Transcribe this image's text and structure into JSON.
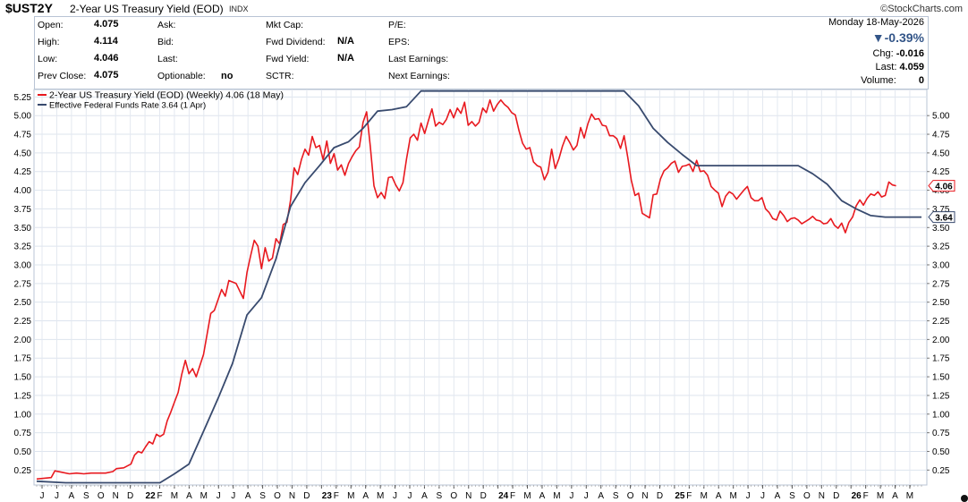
{
  "header": {
    "symbol": "$UST2Y",
    "description": "2-Year US Treasury Yield (EOD)",
    "exchange": "INDX",
    "brand": "©StockCharts.com",
    "date": "Monday  18-May-2026"
  },
  "quote": {
    "col1": [
      {
        "label": "Open:",
        "value": "4.075"
      },
      {
        "label": "High:",
        "value": "4.114"
      },
      {
        "label": "Low:",
        "value": "4.046"
      },
      {
        "label": "Prev Close:",
        "value": "4.075"
      }
    ],
    "col2": [
      {
        "label": "Ask:",
        "value": ""
      },
      {
        "label": "Bid:",
        "value": ""
      },
      {
        "label": "Last:",
        "value": ""
      },
      {
        "label": "Optionable:",
        "value": "no"
      }
    ],
    "col3": [
      {
        "label": "Mkt Cap:",
        "value": ""
      },
      {
        "label": "Fwd Dividend:",
        "value": "N/A"
      },
      {
        "label": "Fwd Yield:",
        "value": "N/A"
      },
      {
        "label": "SCTR:",
        "value": ""
      }
    ],
    "col4": [
      {
        "label": "P/E:"
      },
      {
        "label": "EPS:"
      },
      {
        "label": "Last Earnings:"
      },
      {
        "label": "Next Earnings:"
      }
    ],
    "change_pct": "▼-0.39%",
    "chg_label": "Chg:",
    "chg_value": "-0.016",
    "last_label": "Last:",
    "last_value": "4.059",
    "volume_label": "Volume:",
    "volume_value": "0"
  },
  "chart_data": {
    "type": "line",
    "ylim": [
      0.05,
      5.35
    ],
    "y_ticks_left": [
      "5.25",
      "5.00",
      "4.75",
      "4.50",
      "4.25",
      "4.00",
      "3.75",
      "3.50",
      "3.25",
      "3.00",
      "2.75",
      "2.50",
      "2.25",
      "2.00",
      "1.75",
      "1.50",
      "1.25",
      "1.00",
      "0.75",
      "0.50",
      "0.25"
    ],
    "y_ticks_right": [
      "5.00",
      "4.75",
      "4.50",
      "4.25",
      "4.00",
      "3.75",
      "3.50",
      "3.25",
      "3.00",
      "2.75",
      "2.50",
      "2.25",
      "2.00",
      "1.75",
      "1.50",
      "1.25",
      "1.00",
      "0.75",
      "0.50",
      "0.25"
    ],
    "x_ticks": [
      "J",
      "J",
      "A",
      "S",
      "O",
      "N",
      "D",
      "22",
      "F",
      "M",
      "A",
      "M",
      "J",
      "J",
      "A",
      "S",
      "O",
      "N",
      "D",
      "23",
      "F",
      "M",
      "A",
      "M",
      "J",
      "J",
      "A",
      "S",
      "O",
      "N",
      "D",
      "24",
      "F",
      "M",
      "A",
      "M",
      "J",
      "J",
      "A",
      "S",
      "O",
      "N",
      "D",
      "25",
      "F",
      "M",
      "A",
      "M",
      "J",
      "J",
      "A",
      "S",
      "O",
      "N",
      "D",
      "26",
      "F",
      "M",
      "A",
      "M"
    ],
    "legend": [
      {
        "name": "2-Year US Treasury Yield (EOD) (Weekly) 4.06 (18 May)",
        "color": "#e8191f"
      },
      {
        "name": "Effective Federal Funds Rate 3.64 (1 Apr)",
        "color": "#384a6e"
      }
    ],
    "series": [
      {
        "name": "2-Year US Treasury Yield (EOD) (Weekly) 4.06 (18 May)",
        "color": "#e8191f",
        "last_label": "4.06",
        "anchors": [
          [
            0,
            0.13
          ],
          [
            4,
            0.15
          ],
          [
            5,
            0.24
          ],
          [
            7,
            0.22
          ],
          [
            9,
            0.2
          ],
          [
            11,
            0.21
          ],
          [
            13,
            0.2
          ],
          [
            15,
            0.21
          ],
          [
            17,
            0.21
          ],
          [
            19,
            0.21
          ],
          [
            21,
            0.23
          ],
          [
            22,
            0.27
          ],
          [
            24,
            0.28
          ],
          [
            26,
            0.33
          ],
          [
            27,
            0.45
          ],
          [
            28,
            0.5
          ],
          [
            29,
            0.48
          ],
          [
            30,
            0.56
          ],
          [
            31,
            0.63
          ],
          [
            32,
            0.6
          ],
          [
            33,
            0.73
          ],
          [
            34,
            0.7
          ],
          [
            35,
            0.73
          ],
          [
            36,
            0.91
          ],
          [
            37,
            1.03
          ],
          [
            38,
            1.16
          ],
          [
            39,
            1.29
          ],
          [
            40,
            1.53
          ],
          [
            41,
            1.72
          ],
          [
            42,
            1.54
          ],
          [
            43,
            1.61
          ],
          [
            44,
            1.5
          ],
          [
            46,
            1.8
          ],
          [
            48,
            2.35
          ],
          [
            49,
            2.39
          ],
          [
            51,
            2.67
          ],
          [
            52,
            2.58
          ],
          [
            53,
            2.79
          ],
          [
            55,
            2.75
          ],
          [
            57,
            2.55
          ],
          [
            58,
            2.9
          ],
          [
            59,
            3.12
          ],
          [
            60,
            3.33
          ],
          [
            61,
            3.25
          ],
          [
            62,
            2.95
          ],
          [
            63,
            3.23
          ],
          [
            64,
            3.05
          ],
          [
            65,
            3.09
          ],
          [
            66,
            3.35
          ],
          [
            67,
            3.28
          ],
          [
            68,
            3.54
          ],
          [
            69,
            3.57
          ],
          [
            70,
            3.86
          ],
          [
            71,
            4.3
          ],
          [
            72,
            4.21
          ],
          [
            73,
            4.41
          ],
          [
            74,
            4.55
          ],
          [
            75,
            4.47
          ],
          [
            76,
            4.72
          ],
          [
            77,
            4.57
          ],
          [
            78,
            4.6
          ],
          [
            79,
            4.41
          ],
          [
            80,
            4.66
          ],
          [
            81,
            4.36
          ],
          [
            82,
            4.49
          ],
          [
            83,
            4.27
          ],
          [
            84,
            4.34
          ],
          [
            85,
            4.2
          ],
          [
            86,
            4.36
          ],
          [
            87,
            4.45
          ],
          [
            88,
            4.53
          ],
          [
            89,
            4.58
          ],
          [
            90,
            4.91
          ],
          [
            91,
            5.05
          ],
          [
            92,
            4.59
          ],
          [
            93,
            4.06
          ],
          [
            94,
            3.9
          ],
          [
            95,
            3.97
          ],
          [
            96,
            3.89
          ],
          [
            97,
            4.17
          ],
          [
            98,
            4.18
          ],
          [
            99,
            4.07
          ],
          [
            100,
            3.99
          ],
          [
            101,
            4.1
          ],
          [
            102,
            4.42
          ],
          [
            103,
            4.7
          ],
          [
            104,
            4.75
          ],
          [
            105,
            4.67
          ],
          [
            106,
            4.9
          ],
          [
            107,
            4.76
          ],
          [
            108,
            4.93
          ],
          [
            109,
            5.09
          ],
          [
            110,
            4.86
          ],
          [
            111,
            4.91
          ],
          [
            112,
            4.88
          ],
          [
            113,
            4.95
          ],
          [
            114,
            5.08
          ],
          [
            115,
            4.97
          ],
          [
            116,
            5.1
          ],
          [
            117,
            5.03
          ],
          [
            118,
            5.18
          ],
          [
            119,
            4.87
          ],
          [
            120,
            4.92
          ],
          [
            121,
            4.86
          ],
          [
            122,
            4.91
          ],
          [
            123,
            5.1
          ],
          [
            124,
            5.04
          ],
          [
            125,
            5.21
          ],
          [
            126,
            5.06
          ],
          [
            127,
            5.15
          ],
          [
            128,
            5.21
          ],
          [
            129,
            5.15
          ],
          [
            130,
            5.11
          ],
          [
            131,
            5.04
          ],
          [
            132,
            5.01
          ],
          [
            133,
            4.8
          ],
          [
            134,
            4.63
          ],
          [
            135,
            4.55
          ],
          [
            136,
            4.57
          ],
          [
            137,
            4.38
          ],
          [
            138,
            4.33
          ],
          [
            139,
            4.31
          ],
          [
            140,
            4.14
          ],
          [
            141,
            4.24
          ],
          [
            142,
            4.55
          ],
          [
            143,
            4.29
          ],
          [
            144,
            4.42
          ],
          [
            145,
            4.59
          ],
          [
            146,
            4.72
          ],
          [
            147,
            4.64
          ],
          [
            148,
            4.54
          ],
          [
            149,
            4.6
          ],
          [
            150,
            4.84
          ],
          [
            151,
            4.7
          ],
          [
            152,
            4.89
          ],
          [
            153,
            5.02
          ],
          [
            154,
            4.95
          ],
          [
            155,
            4.96
          ],
          [
            156,
            4.87
          ],
          [
            157,
            4.86
          ],
          [
            158,
            4.73
          ],
          [
            159,
            4.73
          ],
          [
            160,
            4.69
          ],
          [
            161,
            4.56
          ],
          [
            162,
            4.73
          ],
          [
            163,
            4.44
          ],
          [
            164,
            4.13
          ],
          [
            165,
            3.93
          ],
          [
            166,
            3.96
          ],
          [
            167,
            3.69
          ],
          [
            168,
            3.66
          ],
          [
            169,
            3.63
          ],
          [
            170,
            3.94
          ],
          [
            171,
            3.95
          ],
          [
            172,
            4.15
          ],
          [
            173,
            4.26
          ],
          [
            174,
            4.3
          ],
          [
            175,
            4.36
          ],
          [
            176,
            4.39
          ],
          [
            177,
            4.24
          ],
          [
            178,
            4.32
          ],
          [
            179,
            4.33
          ],
          [
            180,
            4.35
          ],
          [
            181,
            4.25
          ],
          [
            182,
            4.4
          ],
          [
            183,
            4.25
          ],
          [
            184,
            4.26
          ],
          [
            185,
            4.2
          ],
          [
            186,
            4.05
          ],
          [
            187,
            4.0
          ],
          [
            188,
            3.96
          ],
          [
            189,
            3.78
          ],
          [
            190,
            3.92
          ],
          [
            191,
            3.98
          ],
          [
            192,
            3.95
          ],
          [
            193,
            3.88
          ],
          [
            194,
            3.94
          ],
          [
            195,
            4.0
          ],
          [
            196,
            4.05
          ],
          [
            197,
            3.9
          ],
          [
            198,
            3.86
          ],
          [
            199,
            3.86
          ],
          [
            200,
            3.9
          ],
          [
            201,
            3.75
          ],
          [
            202,
            3.7
          ],
          [
            203,
            3.62
          ],
          [
            204,
            3.6
          ],
          [
            205,
            3.72
          ],
          [
            206,
            3.66
          ],
          [
            207,
            3.58
          ],
          [
            208,
            3.62
          ],
          [
            209,
            3.63
          ],
          [
            210,
            3.6
          ],
          [
            211,
            3.55
          ],
          [
            212,
            3.58
          ],
          [
            213,
            3.61
          ],
          [
            214,
            3.65
          ],
          [
            215,
            3.6
          ],
          [
            216,
            3.59
          ],
          [
            217,
            3.55
          ],
          [
            218,
            3.56
          ],
          [
            219,
            3.62
          ],
          [
            220,
            3.53
          ],
          [
            221,
            3.49
          ],
          [
            222,
            3.56
          ],
          [
            223,
            3.43
          ],
          [
            224,
            3.57
          ],
          [
            225,
            3.64
          ],
          [
            226,
            3.79
          ],
          [
            227,
            3.87
          ],
          [
            228,
            3.8
          ],
          [
            229,
            3.89
          ],
          [
            230,
            3.95
          ],
          [
            231,
            3.93
          ],
          [
            232,
            3.98
          ],
          [
            233,
            3.91
          ],
          [
            234,
            3.93
          ],
          [
            235,
            4.11
          ],
          [
            236,
            4.07
          ],
          [
            237,
            4.06
          ]
        ]
      },
      {
        "name": "Effective Federal Funds Rate 3.64 (1 Apr)",
        "color": "#384a6e",
        "last_label": "3.64",
        "anchors": [
          [
            0,
            0.1
          ],
          [
            8,
            0.08
          ],
          [
            12,
            0.08
          ],
          [
            34,
            0.08
          ],
          [
            38,
            0.2
          ],
          [
            42,
            0.33
          ],
          [
            46,
            0.77
          ],
          [
            50,
            1.21
          ],
          [
            54,
            1.68
          ],
          [
            58,
            2.33
          ],
          [
            62,
            2.56
          ],
          [
            66,
            3.08
          ],
          [
            70,
            3.78
          ],
          [
            74,
            4.1
          ],
          [
            78,
            4.33
          ],
          [
            82,
            4.57
          ],
          [
            86,
            4.65
          ],
          [
            90,
            4.83
          ],
          [
            94,
            5.06
          ],
          [
            98,
            5.08
          ],
          [
            102,
            5.12
          ],
          [
            106,
            5.33
          ],
          [
            110,
            5.33
          ],
          [
            114,
            5.33
          ],
          [
            118,
            5.33
          ],
          [
            122,
            5.33
          ],
          [
            130,
            5.33
          ],
          [
            150,
            5.33
          ],
          [
            154,
            5.33
          ],
          [
            158,
            5.33
          ],
          [
            162,
            5.33
          ],
          [
            166,
            5.13
          ],
          [
            170,
            4.83
          ],
          [
            174,
            4.64
          ],
          [
            178,
            4.48
          ],
          [
            182,
            4.33
          ],
          [
            186,
            4.33
          ],
          [
            192,
            4.33
          ],
          [
            200,
            4.33
          ],
          [
            206,
            4.33
          ],
          [
            210,
            4.33
          ],
          [
            214,
            4.22
          ],
          [
            218,
            4.08
          ],
          [
            222,
            3.86
          ],
          [
            226,
            3.75
          ],
          [
            230,
            3.66
          ],
          [
            234,
            3.64
          ],
          [
            238,
            3.64
          ],
          [
            242,
            3.64
          ],
          [
            244,
            3.64
          ]
        ]
      }
    ]
  }
}
